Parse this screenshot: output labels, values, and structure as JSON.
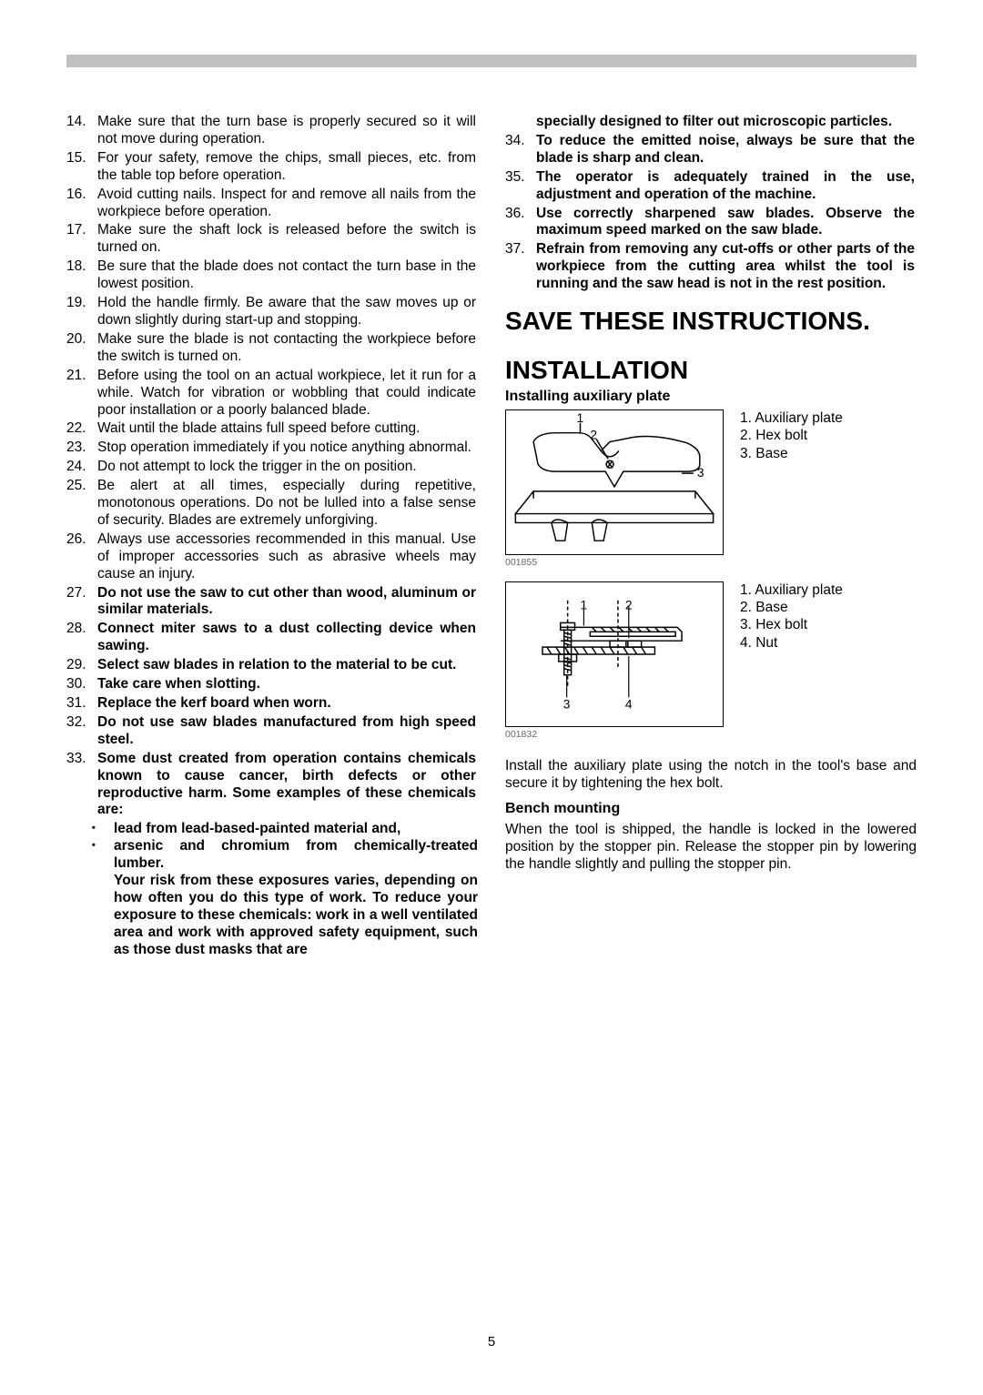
{
  "pageNumber": "5",
  "leftList": [
    {
      "n": "14.",
      "t": "Make sure that the turn base is properly secured so it will not move during operation.",
      "bold": false
    },
    {
      "n": "15.",
      "t": "For your safety, remove the chips, small pieces, etc. from the table top before operation.",
      "bold": false
    },
    {
      "n": "16.",
      "t": "Avoid cutting nails. Inspect for and remove all nails from the workpiece before operation.",
      "bold": false
    },
    {
      "n": "17.",
      "t": "Make sure the shaft lock is released before the switch is turned on.",
      "bold": false
    },
    {
      "n": "18.",
      "t": "Be sure that the blade does not contact the turn base in the lowest position.",
      "bold": false
    },
    {
      "n": "19.",
      "t": "Hold the handle firmly. Be aware that the saw moves up or down slightly during start-up and stopping.",
      "bold": false
    },
    {
      "n": "20.",
      "t": "Make sure the blade is not contacting the workpiece before the switch is turned on.",
      "bold": false
    },
    {
      "n": "21.",
      "t": "Before using the tool on an actual workpiece, let it run for a while. Watch for vibration or wobbling that could indicate poor installation or a poorly balanced blade.",
      "bold": false
    },
    {
      "n": "22.",
      "t": "Wait until the blade attains full speed before cutting.",
      "bold": false
    },
    {
      "n": "23.",
      "t": "Stop operation immediately if you notice anything abnormal.",
      "bold": false
    },
    {
      "n": "24.",
      "t": "Do not attempt to lock the trigger in the on position.",
      "bold": false
    },
    {
      "n": "25.",
      "t": "Be alert at all times, especially during repetitive, monotonous operations. Do not be lulled into a false sense of security. Blades are extremely unforgiving.",
      "bold": false
    },
    {
      "n": "26.",
      "t": "Always use accessories recommended in this manual. Use of improper accessories such as abrasive wheels may cause an injury.",
      "bold": false
    },
    {
      "n": "27.",
      "t": "Do not use the saw to cut other than wood, aluminum or similar materials.",
      "bold": true
    },
    {
      "n": "28.",
      "t": "Connect miter saws to a dust collecting device when sawing.",
      "bold": true
    },
    {
      "n": "29.",
      "t": "Select saw blades in relation to the material to be cut.",
      "bold": true
    },
    {
      "n": "30.",
      "t": "Take care when slotting.",
      "bold": true
    },
    {
      "n": "31.",
      "t": "Replace the kerf board when worn.",
      "bold": true
    },
    {
      "n": "32.",
      "t": "Do not use saw blades manufactured from high speed steel.",
      "bold": true
    },
    {
      "n": "33.",
      "t": "Some dust created from operation contains chemicals known to cause cancer, birth defects or other reproductive harm. Some examples of these chemicals are:",
      "bold": true
    }
  ],
  "subBullets": [
    "lead from lead-based-painted material and,",
    "arsenic and chromium from chemically-treated lumber."
  ],
  "subTrail": "Your risk from these exposures varies, depending on how often you do this type of work. To reduce your exposure to these chemicals: work in a well ventilated area and work with approved safety equipment, such as those dust masks that are",
  "rightTop": "specially designed to filter out microscopic particles.",
  "rightList": [
    {
      "n": "34.",
      "t": "To reduce the emitted noise, always be sure that the blade is sharp and clean."
    },
    {
      "n": "35.",
      "t": "The operator is adequately trained in the use, adjustment and operation of the machine."
    },
    {
      "n": "36.",
      "t": "Use correctly sharpened saw blades. Observe the maximum speed marked on the saw blade."
    },
    {
      "n": "37.",
      "t": "Refrain from removing any cut-offs or other parts of the workpiece from the cutting area whilst the tool is running and the saw head is not in the rest position."
    }
  ],
  "saveHeading": "SAVE THESE INSTRUCTIONS.",
  "installationHeading": "INSTALLATION",
  "installingSub": "Installing auxiliary plate",
  "fig1": {
    "code": "001855",
    "legend": [
      "1. Auxiliary plate",
      "2. Hex bolt",
      "3. Base"
    ],
    "labels": [
      "1",
      "2",
      "3"
    ]
  },
  "fig2": {
    "code": "001832",
    "legend": [
      "1. Auxiliary plate",
      "2. Base",
      "3. Hex bolt",
      "4. Nut"
    ],
    "labels": [
      "1",
      "2",
      "3",
      "4"
    ]
  },
  "installPara": "Install the auxiliary plate using the notch in the tool's base and secure it by tightening the hex bolt.",
  "benchHeading": "Bench mounting",
  "benchPara": "When the tool is shipped, the handle is locked in the lowered position by the stopper pin. Release the stopper pin by lowering the handle slightly and pulling the stopper pin."
}
